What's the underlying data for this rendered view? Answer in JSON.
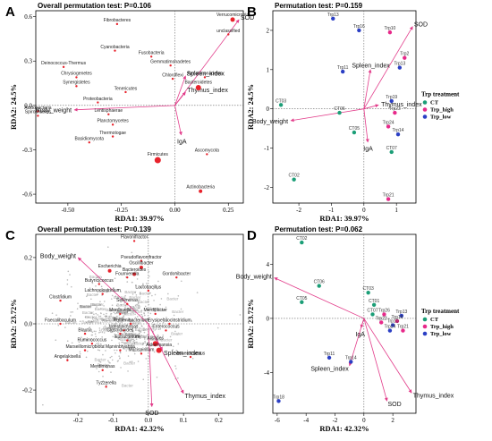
{
  "chart_data": [
    {
      "type": "scatter",
      "panel": "A",
      "title": "Overall permutation test: P=0.106",
      "xlabel": "RDA1: 39.97%",
      "ylabel": "RDA2: 24.5%",
      "xlim": [
        -0.65,
        0.32
      ],
      "ylim": [
        -0.66,
        0.64
      ],
      "xticks": [
        -0.5,
        -0.25,
        0.0,
        0.25
      ],
      "xtick_labels": [
        "-0.50",
        "-0.25",
        "0.00",
        "0.25"
      ],
      "yticks": [
        -0.6,
        -0.3,
        0.0,
        0.3,
        0.6
      ],
      "ytick_labels": [
        "-0.6",
        "-0.3",
        "0.0",
        "0.3",
        "0.6"
      ],
      "points": [
        {
          "label": "Fibrobacteres",
          "x": -0.27,
          "y": 0.55,
          "r": 1.2
        },
        {
          "label": "Verrucomicrobia",
          "x": 0.27,
          "y": 0.58,
          "r": 2.5
        },
        {
          "label": "unclassified",
          "x": 0.25,
          "y": 0.48,
          "r": 1.2
        },
        {
          "label": "Cyanobacteria",
          "x": -0.28,
          "y": 0.37,
          "r": 1.2
        },
        {
          "label": "Fusobacteria",
          "x": -0.11,
          "y": 0.33,
          "r": 1.2
        },
        {
          "label": "Gemmatimonadetes",
          "x": -0.02,
          "y": 0.27,
          "r": 1.2
        },
        {
          "label": "Deinococcus-Thermus",
          "x": -0.52,
          "y": 0.26,
          "r": 1.2
        },
        {
          "label": "Chrysiogenetes",
          "x": -0.46,
          "y": 0.19,
          "r": 1.2
        },
        {
          "label": "Armatimonadetes",
          "x": 0.14,
          "y": 0.19,
          "r": 1.2
        },
        {
          "label": "Chloroflexi",
          "x": -0.01,
          "y": 0.18,
          "r": 1.2
        },
        {
          "label": "Bacteroidetes",
          "x": 0.11,
          "y": 0.12,
          "r": 3
        },
        {
          "label": "Synergistetes",
          "x": -0.46,
          "y": 0.13,
          "r": 1.2
        },
        {
          "label": "Tenericutes",
          "x": -0.23,
          "y": 0.09,
          "r": 1.2
        },
        {
          "label": "Proteobacteria",
          "x": -0.36,
          "y": 0.02,
          "r": 1.2
        },
        {
          "label": "Acidobacteria",
          "x": -0.64,
          "y": -0.04,
          "r": 1.2
        },
        {
          "label": "Spirochaetes",
          "x": -0.64,
          "y": -0.07,
          "r": 1.2
        },
        {
          "label": "Lentisphaerae",
          "x": -0.31,
          "y": -0.06,
          "r": 1.2
        },
        {
          "label": "Planctomycetes",
          "x": -0.29,
          "y": -0.13,
          "r": 1.2
        },
        {
          "label": "Thermotogae",
          "x": -0.29,
          "y": -0.21,
          "r": 1.2
        },
        {
          "label": "Basidiomycota",
          "x": -0.4,
          "y": -0.25,
          "r": 1.2
        },
        {
          "label": "Ascomycota",
          "x": 0.15,
          "y": -0.33,
          "r": 1.2
        },
        {
          "label": "Firmicutes",
          "x": -0.08,
          "y": -0.37,
          "r": 3.5
        },
        {
          "label": "Actinobacteria",
          "x": 0.12,
          "y": -0.58,
          "r": 2
        }
      ],
      "arrows": [
        {
          "label": "SOD",
          "x": 0.3,
          "y": 0.58
        },
        {
          "label": "Spleen_index",
          "x": 0.05,
          "y": 0.2
        },
        {
          "label": "Thymus_index",
          "x": 0.05,
          "y": 0.09
        },
        {
          "label": "Body_weight",
          "x": -0.47,
          "y": -0.03
        },
        {
          "label": "IgA",
          "x": 0.03,
          "y": -0.2
        }
      ]
    },
    {
      "type": "scatter",
      "panel": "B",
      "title": "Permutation test: P=0.159",
      "xlabel": "RDA1: 39.97%",
      "ylabel": "RDA2: 24.5%",
      "xlim": [
        -2.8,
        1.6
      ],
      "ylim": [
        -2.4,
        2.5
      ],
      "xticks": [
        -2,
        -1,
        0,
        1
      ],
      "xtick_labels": [
        "-2",
        "-1",
        "0",
        "1"
      ],
      "yticks": [
        -2,
        -1,
        0,
        1,
        2
      ],
      "ytick_labels": [
        "-2",
        "-1",
        "0",
        "1",
        "2"
      ],
      "legend": {
        "title": "Trp treatment",
        "items": [
          {
            "name": "CT",
            "color": "#1b9e77"
          },
          {
            "name": "Trp_high",
            "color": "#e7298a"
          },
          {
            "name": "Trp_low",
            "color": "#2b3fc4"
          }
        ]
      },
      "points": [
        {
          "label": "Trp13",
          "x": -0.95,
          "y": 2.3,
          "group": "Trp_low"
        },
        {
          "label": "Trp16",
          "x": -0.15,
          "y": 2.0,
          "group": "Trp_low"
        },
        {
          "label": "Trp10",
          "x": 0.8,
          "y": 1.95,
          "group": "Trp_high"
        },
        {
          "label": "Trp11",
          "x": -0.65,
          "y": 0.95,
          "group": "Trp_low"
        },
        {
          "label": "Trp2",
          "x": 1.25,
          "y": 1.3,
          "group": "Trp_high"
        },
        {
          "label": "Trp13",
          "x": 1.1,
          "y": 1.05,
          "group": "Trp_low"
        },
        {
          "label": "Trp23",
          "x": 0.95,
          "y": -0.1,
          "group": "Trp_high"
        },
        {
          "label": "Trp19",
          "x": 0.85,
          "y": 0.2,
          "group": "Trp_low"
        },
        {
          "label": "Trp24",
          "x": 0.75,
          "y": -0.45,
          "group": "Trp_high"
        },
        {
          "label": "Trp14",
          "x": 1.05,
          "y": -0.65,
          "group": "Trp_low"
        },
        {
          "label": "CT03",
          "x": -2.55,
          "y": 0.1,
          "group": "CT"
        },
        {
          "label": "CT06",
          "x": -0.75,
          "y": -0.1,
          "group": "CT"
        },
        {
          "label": "CT05",
          "x": -0.3,
          "y": -0.6,
          "group": "CT"
        },
        {
          "label": "CT07",
          "x": 0.85,
          "y": -1.1,
          "group": "CT"
        },
        {
          "label": "CT02",
          "x": -2.15,
          "y": -1.8,
          "group": "CT"
        },
        {
          "label": "Trp21",
          "x": 0.75,
          "y": -2.3,
          "group": "Trp_high"
        }
      ],
      "arrows": [
        {
          "label": "SOD",
          "x": 1.5,
          "y": 2.1
        },
        {
          "label": "Spleen_index",
          "x": 0.2,
          "y": 1.0
        },
        {
          "label": "Thymus_index",
          "x": 0.45,
          "y": 0.1
        },
        {
          "label": "Body_weight",
          "x": -2.25,
          "y": -0.3
        },
        {
          "label": "IgA",
          "x": 0.12,
          "y": -0.85
        }
      ]
    },
    {
      "type": "scatter",
      "panel": "C",
      "title": "Overall permutation test: P=0.139",
      "xlabel": "RDA1: 42.32%",
      "ylabel": "RDA2: 23.72%",
      "xlim": [
        -0.32,
        0.27
      ],
      "ylim": [
        -0.27,
        0.27
      ],
      "xticks": [
        -0.2,
        -0.1,
        0.0,
        0.1,
        0.2
      ],
      "xtick_labels": [
        "-0.2",
        "-0.1",
        "0.0",
        "0.1",
        "0.2"
      ],
      "yticks": [
        -0.2,
        0.0,
        0.2
      ],
      "ytick_labels": [
        "-0.2",
        "0.0",
        "0.2"
      ],
      "points": [
        {
          "label": "Flavonifractor",
          "x": -0.04,
          "y": 0.25,
          "r": 1.2
        },
        {
          "label": "Pseudoflavonifractor",
          "x": -0.02,
          "y": 0.19,
          "r": 1.2
        },
        {
          "label": "Oscillibacter",
          "x": -0.02,
          "y": 0.17,
          "r": 2
        },
        {
          "label": "Escherichia",
          "x": -0.11,
          "y": 0.16,
          "r": 2
        },
        {
          "label": "Bacteroides",
          "x": -0.04,
          "y": 0.15,
          "r": 2
        },
        {
          "label": "Gordonibacter",
          "x": 0.08,
          "y": 0.14,
          "r": 1.2
        },
        {
          "label": "Fournierella",
          "x": -0.06,
          "y": 0.14,
          "r": 1.2
        },
        {
          "label": "Butyricicoccus",
          "x": -0.14,
          "y": 0.12,
          "r": 1.2
        },
        {
          "label": "Lactobacillus",
          "x": 0.0,
          "y": 0.1,
          "r": 1.2
        },
        {
          "label": "Lachnoclostridium",
          "x": -0.13,
          "y": 0.09,
          "r": 1.2
        },
        {
          "label": "Clostridium",
          "x": -0.25,
          "y": 0.07,
          "r": 1.2
        },
        {
          "label": "Sellimonas",
          "x": -0.06,
          "y": 0.06,
          "r": 1.2
        },
        {
          "label": "Mordavella",
          "x": -0.08,
          "y": 0.03,
          "r": 1.2
        },
        {
          "label": "Merdibacter",
          "x": 0.02,
          "y": 0.03,
          "r": 1.2
        },
        {
          "label": "Faecalibaculum",
          "x": -0.25,
          "y": 0.0,
          "r": 1.2
        },
        {
          "label": "Erysipelatoclostridium",
          "x": 0.06,
          "y": 0.0,
          "r": 1.2
        },
        {
          "label": "Ruthenibacterium",
          "x": -0.05,
          "y": 0.0,
          "r": 1.2
        },
        {
          "label": "Enterococcus",
          "x": 0.05,
          "y": -0.02,
          "r": 1.2
        },
        {
          "label": "Intestinimonas",
          "x": -0.07,
          "y": -0.02,
          "r": 1.2
        },
        {
          "label": "Blautia",
          "x": -0.18,
          "y": -0.03,
          "r": 1.2
        },
        {
          "label": "Clostridioides",
          "x": -0.08,
          "y": -0.03,
          "r": 1.2
        },
        {
          "label": "Eubacterium",
          "x": -0.06,
          "y": -0.05,
          "r": 1.2
        },
        {
          "label": "Ruminococcus",
          "x": -0.16,
          "y": -0.06,
          "r": 1.2
        },
        {
          "label": "Alistipes",
          "x": 0.02,
          "y": -0.06,
          "r": 3
        },
        {
          "label": "Marvinbryantia",
          "x": -0.08,
          "y": -0.08,
          "r": 1.2
        },
        {
          "label": "Akkermansia",
          "x": 0.03,
          "y": -0.08,
          "r": 3
        },
        {
          "label": "Mucispirillum",
          "x": -0.02,
          "y": -0.09,
          "r": 1.2
        },
        {
          "label": "Anaerotruncus",
          "x": 0.12,
          "y": -0.1,
          "r": 1.2
        },
        {
          "label": "Angelakisella",
          "x": -0.23,
          "y": -0.11,
          "r": 1.2
        },
        {
          "label": "Marseillomicrobiota",
          "x": -0.18,
          "y": -0.08,
          "r": 1.2
        },
        {
          "label": "Merdimonas",
          "x": -0.13,
          "y": -0.14,
          "r": 1.2
        },
        {
          "label": "Tyzzerella",
          "x": -0.12,
          "y": -0.19,
          "r": 1.2
        }
      ],
      "arrows": [
        {
          "label": "Body_weight",
          "x": -0.2,
          "y": 0.2
        },
        {
          "label": "Spleen_index",
          "x": 0.04,
          "y": -0.08
        },
        {
          "label": "Thymus_index",
          "x": 0.1,
          "y": -0.21
        },
        {
          "label": "SOD",
          "x": 0.01,
          "y": -0.25
        }
      ]
    },
    {
      "type": "scatter",
      "panel": "D",
      "title": "Permutation test: P=0.062",
      "xlabel": "RDA1: 42.32%",
      "ylabel": "RDA2: 23.72%",
      "xlim": [
        -6.3,
        3.6
      ],
      "ylim": [
        -7.0,
        6.2
      ],
      "xticks": [
        -6,
        -4,
        -2,
        0,
        2
      ],
      "xtick_labels": [
        "-6",
        "-4",
        "-2",
        "0",
        "2"
      ],
      "yticks": [
        -4,
        0,
        4
      ],
      "ytick_labels": [
        "-4",
        "0",
        "4"
      ],
      "legend": {
        "title": "Trp treatment",
        "items": [
          {
            "name": "CT",
            "color": "#1b9e77"
          },
          {
            "name": "Trp_high",
            "color": "#e7298a"
          },
          {
            "name": "Trp_low",
            "color": "#2b3fc4"
          }
        ]
      },
      "points": [
        {
          "label": "CT02",
          "x": -4.3,
          "y": 5.6,
          "group": "CT"
        },
        {
          "label": "CT06",
          "x": -3.1,
          "y": 2.4,
          "group": "CT"
        },
        {
          "label": "CT03",
          "x": 0.3,
          "y": 1.9,
          "group": "CT"
        },
        {
          "label": "CT05",
          "x": -4.3,
          "y": 1.2,
          "group": "CT"
        },
        {
          "label": "CT01",
          "x": 0.7,
          "y": 1.0,
          "group": "CT"
        },
        {
          "label": "CT07",
          "x": 0.6,
          "y": 0.3,
          "group": "CT"
        },
        {
          "label": "Trp26",
          "x": 1.4,
          "y": 0.3,
          "group": "Trp_high"
        },
        {
          "label": "Trp13",
          "x": 2.6,
          "y": 0.2,
          "group": "Trp_low"
        },
        {
          "label": "Trp16",
          "x": 2.3,
          "y": -0.2,
          "group": "Trp_high"
        },
        {
          "label": "Trp22",
          "x": 1.2,
          "y": -0.3,
          "group": "Trp_high"
        },
        {
          "label": "Trp10",
          "x": 2.0,
          "y": -0.5,
          "group": "Trp_low"
        },
        {
          "label": "Trp21",
          "x": 2.7,
          "y": -0.9,
          "group": "Trp_high"
        },
        {
          "label": "Trp24",
          "x": 1.8,
          "y": -0.9,
          "group": "Trp_low"
        },
        {
          "label": "Trp11",
          "x": -2.4,
          "y": -2.9,
          "group": "Trp_low"
        },
        {
          "label": "Trp14",
          "x": -0.9,
          "y": -3.2,
          "group": "Trp_low"
        },
        {
          "label": "Trp18",
          "x": -5.9,
          "y": -6.1,
          "group": "Trp_low"
        }
      ],
      "arrows": [
        {
          "label": "Body_weight",
          "x": -6.2,
          "y": 3.0
        },
        {
          "label": "IgA",
          "x": -0.2,
          "y": -0.7
        },
        {
          "label": "Spleen_index",
          "x": -1.0,
          "y": -3.5
        },
        {
          "label": "Thymus_index",
          "x": 3.3,
          "y": -5.5
        },
        {
          "label": "SOD",
          "x": 1.6,
          "y": -6.1
        }
      ]
    }
  ],
  "species_cloud_seed": 7
}
